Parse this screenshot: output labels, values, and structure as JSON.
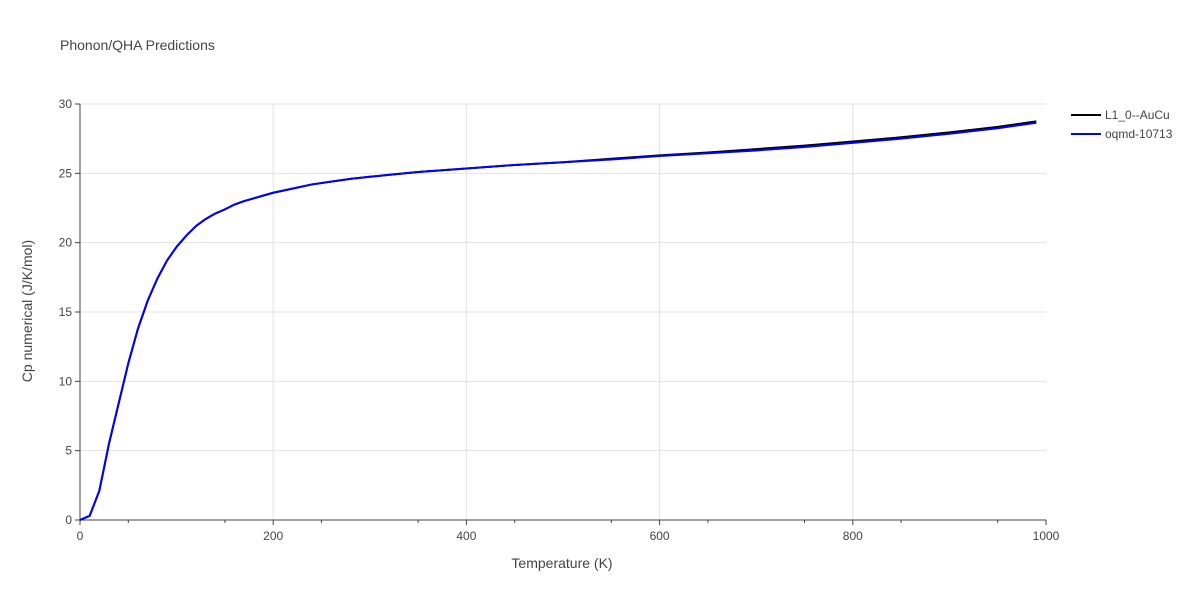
{
  "chart_data": {
    "type": "line",
    "title": "Phonon/QHA Predictions",
    "xlabel": "Temperature (K)",
    "ylabel": "Cp numerical (J/K/mol)",
    "xlim": [
      0,
      1000
    ],
    "ylim": [
      0,
      30
    ],
    "x_ticks": [
      "0",
      "200",
      "400",
      "600",
      "800",
      "1000"
    ],
    "y_ticks": [
      "0",
      "5",
      "10",
      "15",
      "20",
      "25",
      "30"
    ],
    "grid": true,
    "legend_position": "top-right",
    "x": [
      0,
      10,
      20,
      30,
      40,
      50,
      60,
      70,
      80,
      90,
      100,
      110,
      120,
      130,
      140,
      150,
      160,
      170,
      180,
      190,
      200,
      220,
      240,
      260,
      280,
      300,
      350,
      400,
      450,
      500,
      550,
      600,
      650,
      700,
      750,
      800,
      850,
      900,
      950,
      990
    ],
    "series": [
      {
        "name": "L1_0--AuCu",
        "color": "#000000",
        "values": [
          0,
          0.3,
          2.1,
          5.5,
          8.4,
          11.3,
          13.8,
          15.8,
          17.4,
          18.7,
          19.7,
          20.5,
          21.2,
          21.7,
          22.1,
          22.4,
          22.75,
          23.0,
          23.2,
          23.4,
          23.6,
          23.9,
          24.2,
          24.4,
          24.6,
          24.75,
          25.1,
          25.35,
          25.6,
          25.8,
          26.05,
          26.3,
          26.5,
          26.75,
          27.0,
          27.3,
          27.6,
          27.95,
          28.35,
          28.75
        ]
      },
      {
        "name": "oqmd-10713",
        "color": "#0000ff",
        "values": [
          0,
          0.3,
          2.1,
          5.5,
          8.4,
          11.3,
          13.8,
          15.8,
          17.4,
          18.7,
          19.7,
          20.5,
          21.2,
          21.7,
          22.1,
          22.4,
          22.75,
          23.0,
          23.2,
          23.4,
          23.6,
          23.9,
          24.2,
          24.4,
          24.6,
          24.75,
          25.1,
          25.35,
          25.6,
          25.8,
          26.0,
          26.25,
          26.45,
          26.65,
          26.9,
          27.2,
          27.5,
          27.85,
          28.25,
          28.65
        ]
      }
    ]
  }
}
